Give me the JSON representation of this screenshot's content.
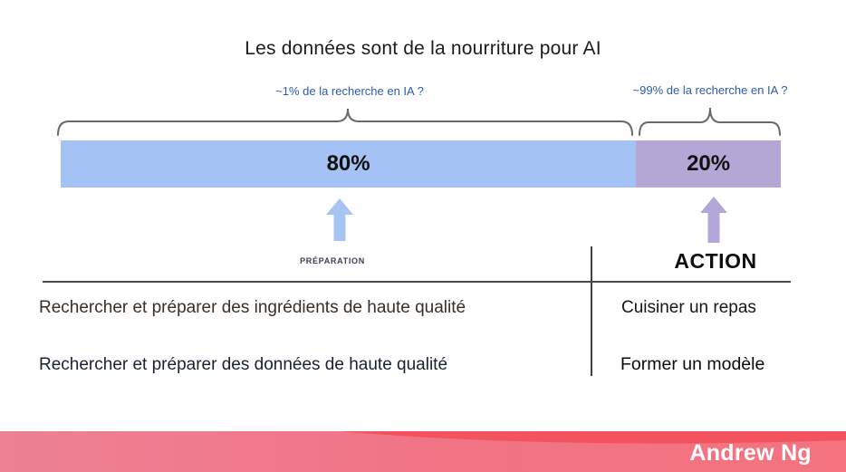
{
  "slide": {
    "title": "Les données sont de la nourriture pour AI",
    "annotations": {
      "left": "~1% de la recherche en IA ?",
      "right": "~99% de la recherche en IA ?"
    },
    "bar": {
      "segments": [
        {
          "label": "80%",
          "share": 0.799,
          "color": "#a4c2f4",
          "meaning": "préparation"
        },
        {
          "label": "20%",
          "share": 0.201,
          "color": "#b4a7d6",
          "meaning": "action"
        }
      ]
    },
    "column_labels": {
      "preparation": "PRÉPARATION",
      "action": "ACTION"
    },
    "table": {
      "rows": [
        {
          "left": "Rechercher et préparer des ingrédients de haute qualité",
          "right": "Cuisiner un repas"
        },
        {
          "left": "Rechercher et préparer des données de haute qualité",
          "right": "Former un modèle"
        }
      ]
    },
    "footer": {
      "author": "Andrew Ng"
    },
    "colors": {
      "segment_blue": "#a4c2f4",
      "segment_purple": "#b4a7d6",
      "annotation_blue": "#2b5cad",
      "bracket_gray": "#6a6a6a",
      "footer_pink": "#ee8195",
      "footer_red": "#f2535f"
    }
  },
  "chart_data": {
    "type": "bar",
    "categories": [
      "Préparation",
      "Action"
    ],
    "values": [
      80,
      20
    ],
    "title": "Les données sont de la nourriture pour AI",
    "xlabel": "",
    "ylabel": "",
    "annotations": [
      "~1% de la recherche en IA ?",
      "~99% de la recherche en IA ?"
    ],
    "layout": "single horizontal stacked proportion bar"
  }
}
